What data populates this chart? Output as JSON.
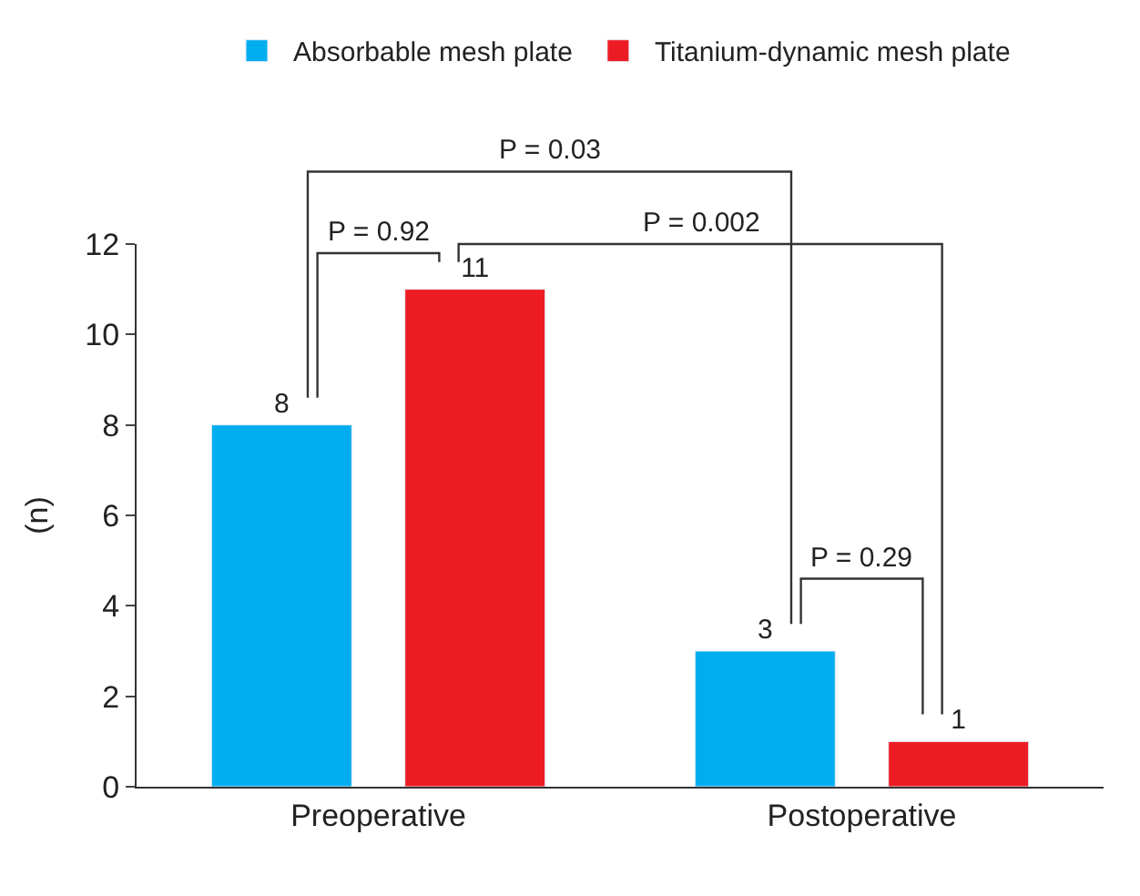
{
  "chart_data": {
    "type": "bar",
    "categories": [
      "Preoperative",
      "Postoperative"
    ],
    "series": [
      {
        "name": "Absorbable mesh plate",
        "color": "#00aeef",
        "values": [
          8,
          3
        ]
      },
      {
        "name": "Titanium-dynamic mesh plate",
        "color": "#ed1c24",
        "values": [
          11,
          1
        ]
      }
    ],
    "ylabel": "(n)",
    "ylim": [
      0,
      12
    ],
    "yticks": [
      0,
      2,
      4,
      6,
      8,
      10,
      12
    ],
    "data_labels": true,
    "legend": "top",
    "annotations": [
      "P = 0.03",
      "P = 0.92",
      "P = 0.002",
      "P = 0.29"
    ]
  }
}
